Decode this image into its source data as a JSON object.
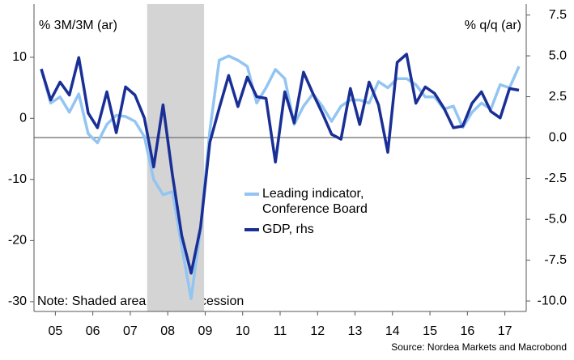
{
  "chart_data": {
    "type": "line",
    "y_label": "% 3M/3M (ar)",
    "y2_label": "% q/q (ar)",
    "note": "Note: Shaded area marks recession",
    "source": "Source: Nordea Markets and Macrobond",
    "recession": [
      2007.95,
      2009.47
    ],
    "hline": {
      "axis": "y2",
      "value": 0
    },
    "x": [
      2005.125,
      2005.375,
      2005.625,
      2005.875,
      2006.125,
      2006.375,
      2006.625,
      2006.875,
      2007.125,
      2007.375,
      2007.625,
      2007.875,
      2008.125,
      2008.375,
      2008.625,
      2008.875,
      2009.125,
      2009.375,
      2009.625,
      2009.875,
      2010.125,
      2010.375,
      2010.625,
      2010.875,
      2011.125,
      2011.375,
      2011.625,
      2011.875,
      2012.125,
      2012.375,
      2012.625,
      2012.875,
      2013.125,
      2013.375,
      2013.625,
      2013.875,
      2014.125,
      2014.375,
      2014.625,
      2014.875,
      2015.125,
      2015.375,
      2015.625,
      2015.875,
      2016.125,
      2016.375,
      2016.625,
      2016.875,
      2017.125,
      2017.375,
      2017.625,
      2017.875
    ],
    "series": [
      {
        "name": "Leading indicator, Conference Board",
        "color": "#93c5f2",
        "axis": "y",
        "values": [
          8.0,
          2.5,
          3.5,
          1.0,
          4.0,
          -2.5,
          -4.0,
          -1.0,
          0.5,
          0.3,
          -0.5,
          -3.0,
          -10.0,
          -12.5,
          -12.0,
          -21,
          -29.5,
          -18,
          -2,
          9.5,
          10.2,
          9.5,
          8.5,
          2.5,
          5.0,
          8.0,
          6.5,
          -1.0,
          2.0,
          4.0,
          2.0,
          -0.5,
          2.0,
          3.0,
          3.0,
          2.5,
          6.0,
          5.0,
          6.5,
          6.5,
          5.5,
          3.5,
          3.5,
          1.5,
          2.0,
          -1.5,
          1.0,
          2.5,
          1.5,
          5.5,
          5.0,
          8.5
        ]
      },
      {
        "name": "GDP, rhs",
        "color": "#1a2f96",
        "axis": "y2",
        "values": [
          4.2,
          2.3,
          3.4,
          2.6,
          4.9,
          1.5,
          0.6,
          2.8,
          0.3,
          3.1,
          2.6,
          1.2,
          -1.8,
          2.0,
          -2.3,
          -6.0,
          -8.3,
          -5.5,
          -0.3,
          1.8,
          3.8,
          1.9,
          3.7,
          2.5,
          2.4,
          -1.5,
          2.8,
          0.9,
          4.0,
          2.7,
          1.5,
          0.2,
          -0.1,
          3.0,
          0.8,
          3.4,
          2.0,
          -0.9,
          4.6,
          5.1,
          2.1,
          3.1,
          2.7,
          1.8,
          0.6,
          0.7,
          2.1,
          2.8,
          1.6,
          1.2,
          3.0,
          2.9
        ]
      }
    ],
    "xlim": [
      2004.93,
      2018.07
    ],
    "xticks": [
      {
        "value": 2005.5,
        "label": "05"
      },
      {
        "value": 2006.5,
        "label": "06"
      },
      {
        "value": 2007.5,
        "label": "07"
      },
      {
        "value": 2008.5,
        "label": "08"
      },
      {
        "value": 2009.5,
        "label": "09"
      },
      {
        "value": 2010.5,
        "label": "10"
      },
      {
        "value": 2011.5,
        "label": "11"
      },
      {
        "value": 2012.5,
        "label": "12"
      },
      {
        "value": 2013.5,
        "label": "13"
      },
      {
        "value": 2014.5,
        "label": "14"
      },
      {
        "value": 2015.5,
        "label": "15"
      },
      {
        "value": 2016.5,
        "label": "16"
      },
      {
        "value": 2017.5,
        "label": "17"
      }
    ],
    "ylim": [
      -31.6,
      18.7
    ],
    "yticks": [
      -30,
      -20,
      -10,
      0,
      10
    ],
    "y2lim": [
      -10.64,
      8.17
    ],
    "y2ticks": [
      {
        "value": -10,
        "label": "-10.0"
      },
      {
        "value": -7.5,
        "label": "-7.5"
      },
      {
        "value": -5,
        "label": "-5.0"
      },
      {
        "value": -2.5,
        "label": "-2.5"
      },
      {
        "value": 0,
        "label": "0.0"
      },
      {
        "value": 2.5,
        "label": "2.5"
      },
      {
        "value": 5,
        "label": "5.0"
      },
      {
        "value": 7.5,
        "label": "7.5"
      }
    ]
  }
}
